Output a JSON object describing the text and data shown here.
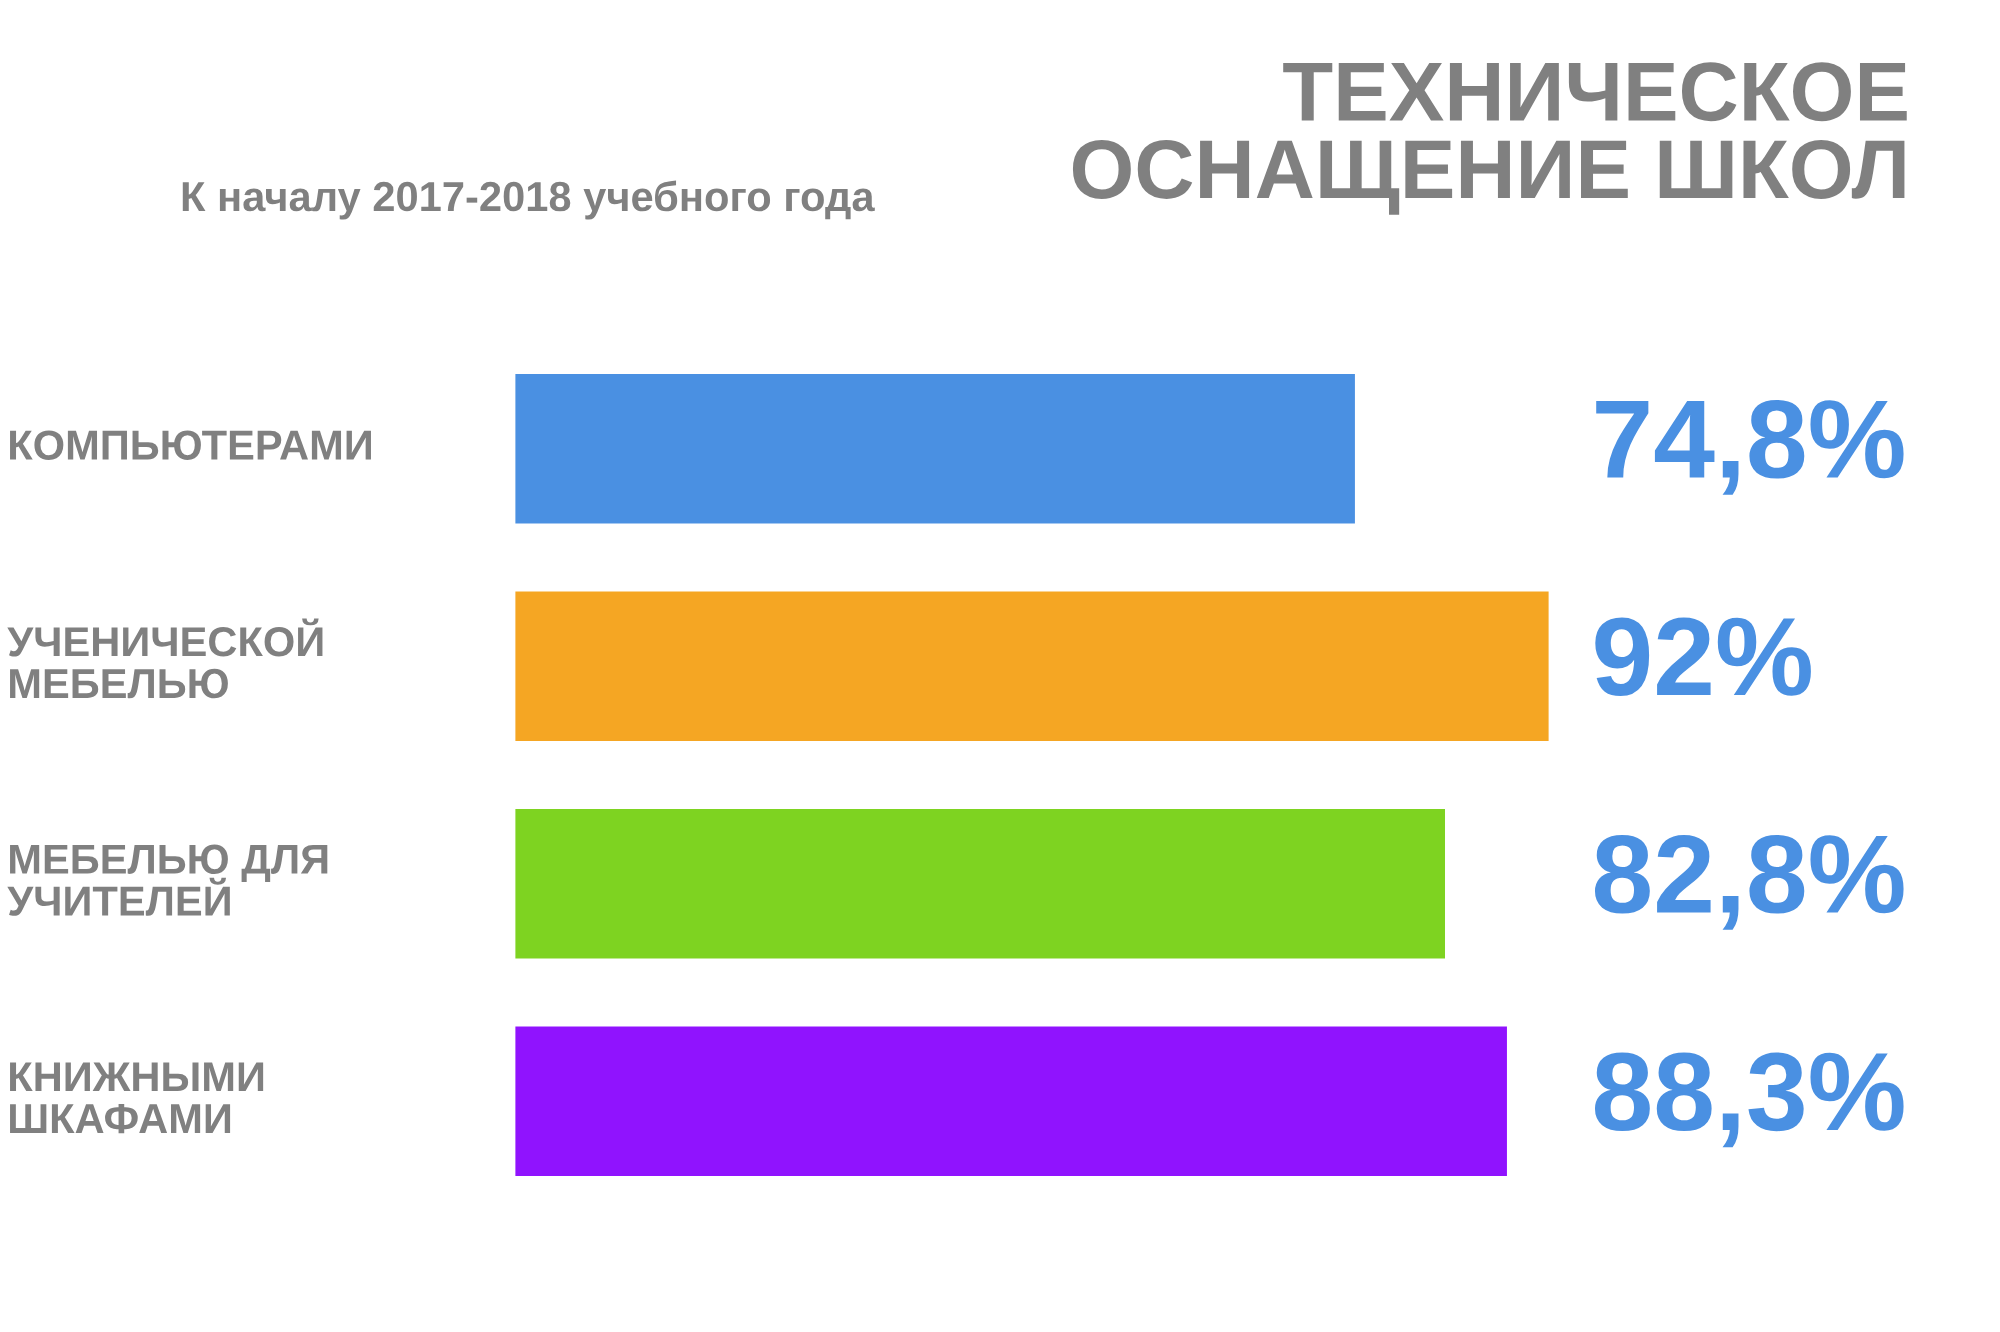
{
  "chart_data": {
    "type": "bar",
    "orientation": "horizontal",
    "title": "ТЕХНИЧЕСКОЕ\nОСНАЩЕНИЕ ШКОЛ",
    "subtitle": "К началу 2017-2018 учебного года",
    "categories": [
      "КОМПЬЮТЕРАМИ",
      "УЧЕНИЧЕСКОЙ\nМЕБЕЛЬЮ",
      "МЕБЕЛЬЮ ДЛЯ\nУЧИТЕЛЕЙ",
      "КНИЖНЫМИ\nШКАФАМИ"
    ],
    "values": [
      74.8,
      92,
      82.8,
      88.3
    ],
    "colors": [
      "#4a90e2",
      "#f5a623",
      "#7ed321",
      "#9013fe"
    ],
    "value_labels": [
      "74,8%",
      "92%",
      "82,8%",
      "88,3%"
    ]
  }
}
